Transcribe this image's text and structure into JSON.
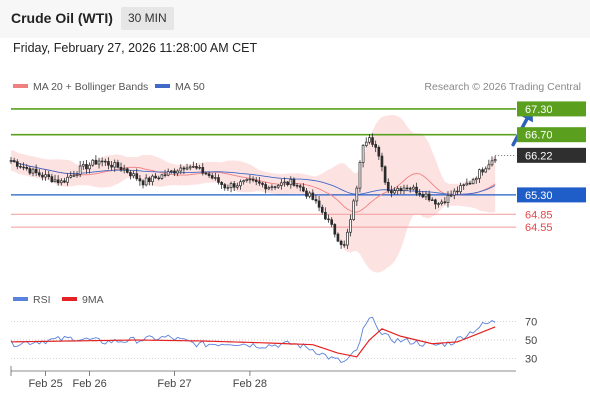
{
  "header": {
    "instrument": "Crude Oil (WTI)",
    "timeframe": "30 MIN",
    "datetime": "Friday, February 27, 2026 11:28:00 AM CET"
  },
  "legend": {
    "ma20_label": "MA 20 + Bollinger Bands",
    "ma50_label": "MA 50",
    "copyright": "Research © 2026 Trading Central"
  },
  "colors": {
    "resistance": "#5aa01e",
    "support": "#1f5ec8",
    "bollinger_fill": "#fde2e2",
    "ma20": "#f08080",
    "ma50": "#4169c8",
    "candle": "#2b2b2b",
    "rsi": "#5a82dc",
    "rsi_ma": "#e52222"
  },
  "chart_data": [
    {
      "type": "candlestick",
      "ylim": [
        63.6,
        67.6
      ],
      "x_ticks": [
        "Feb 25",
        "Feb 26",
        "Feb 27",
        "Feb 28"
      ],
      "series": [
        {
          "name": "MA 20 + Bollinger Bands"
        },
        {
          "name": "MA 50"
        }
      ],
      "close_path": [
        [
          0,
          66.1
        ],
        [
          8,
          65.8
        ],
        [
          16,
          65.6
        ],
        [
          22,
          65.9
        ],
        [
          28,
          66.1
        ],
        [
          36,
          65.9
        ],
        [
          42,
          65.6
        ],
        [
          50,
          65.8
        ],
        [
          56,
          66.0
        ],
        [
          62,
          65.8
        ],
        [
          68,
          65.5
        ],
        [
          76,
          65.6
        ],
        [
          82,
          65.5
        ],
        [
          90,
          65.6
        ],
        [
          96,
          65.2
        ],
        [
          100,
          64.8
        ],
        [
          104,
          64.3
        ],
        [
          106,
          64.1
        ],
        [
          108,
          64.7
        ],
        [
          110,
          65.5
        ],
        [
          112,
          66.5
        ],
        [
          114,
          66.7
        ],
        [
          116,
          66.4
        ],
        [
          118,
          65.9
        ],
        [
          120,
          65.4
        ],
        [
          126,
          65.5
        ],
        [
          132,
          65.3
        ],
        [
          136,
          65.1
        ],
        [
          140,
          65.3
        ],
        [
          146,
          65.6
        ],
        [
          150,
          65.9
        ],
        [
          154,
          66.2
        ]
      ],
      "current_price": 66.22,
      "levels": [
        {
          "value": 67.3,
          "label": "67.30",
          "kind": "resistance"
        },
        {
          "value": 66.7,
          "label": "66.70",
          "kind": "resistance"
        },
        {
          "value": 66.22,
          "label": "66.22",
          "kind": "last"
        },
        {
          "value": 65.3,
          "label": "65.30",
          "kind": "pivot"
        },
        {
          "value": 64.85,
          "label": "64.85",
          "kind": "support"
        },
        {
          "value": 64.55,
          "label": "64.55",
          "kind": "support"
        }
      ]
    },
    {
      "type": "line",
      "series": [
        {
          "name": "RSI"
        },
        {
          "name": "9MA"
        }
      ],
      "ylim": [
        20,
        80
      ],
      "y_ticks": [
        "70",
        "50",
        "30"
      ],
      "rsi": [
        [
          0,
          46
        ],
        [
          10,
          49
        ],
        [
          20,
          52
        ],
        [
          30,
          48
        ],
        [
          40,
          50
        ],
        [
          50,
          53
        ],
        [
          60,
          45
        ],
        [
          70,
          47
        ],
        [
          80,
          44
        ],
        [
          90,
          46
        ],
        [
          96,
          40
        ],
        [
          102,
          30
        ],
        [
          106,
          26
        ],
        [
          110,
          38
        ],
        [
          112,
          60
        ],
        [
          114,
          72
        ],
        [
          116,
          70
        ],
        [
          118,
          55
        ],
        [
          122,
          50
        ],
        [
          128,
          48
        ],
        [
          134,
          44
        ],
        [
          140,
          47
        ],
        [
          146,
          58
        ],
        [
          150,
          66
        ],
        [
          154,
          70
        ]
      ],
      "rsi_ma": [
        [
          0,
          48
        ],
        [
          20,
          49
        ],
        [
          40,
          50
        ],
        [
          60,
          49
        ],
        [
          80,
          47
        ],
        [
          96,
          45
        ],
        [
          104,
          36
        ],
        [
          110,
          32
        ],
        [
          114,
          50
        ],
        [
          118,
          62
        ],
        [
          124,
          54
        ],
        [
          134,
          46
        ],
        [
          142,
          48
        ],
        [
          148,
          56
        ],
        [
          154,
          64
        ]
      ]
    }
  ]
}
